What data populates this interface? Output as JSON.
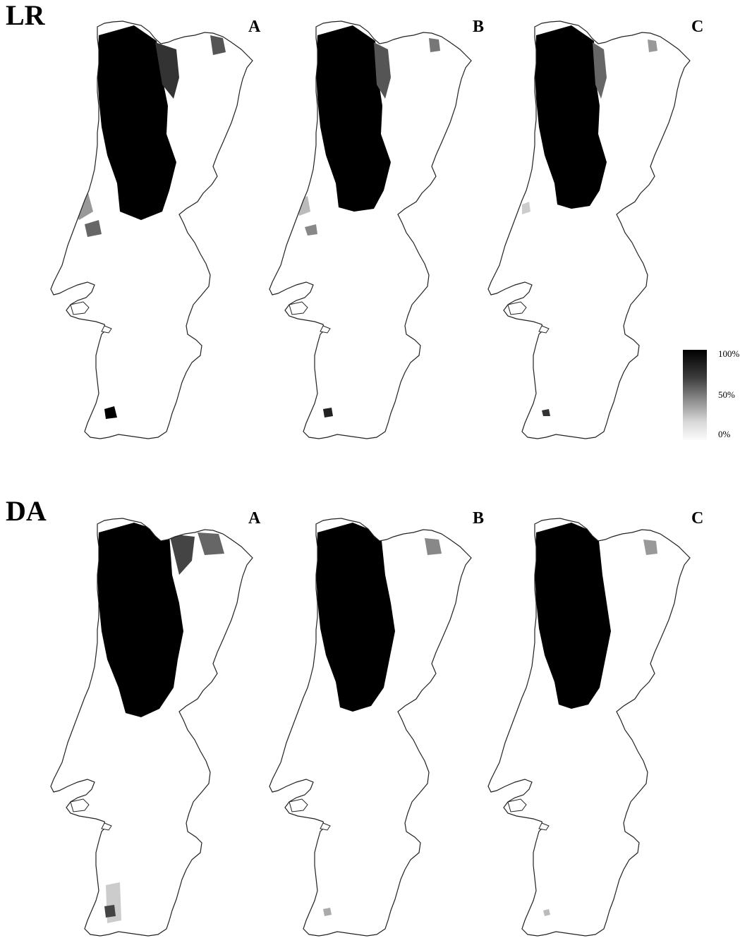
{
  "sections": [
    {
      "id": "lr",
      "label": "LR",
      "panels": [
        "A",
        "B",
        "C"
      ]
    },
    {
      "id": "da",
      "label": "DA",
      "panels": [
        "A",
        "B",
        "C"
      ]
    }
  ],
  "legend": {
    "ticks": [
      "100%",
      "50%",
      "0%"
    ],
    "colors": [
      "#000000",
      "#808080",
      "#ffffff"
    ]
  },
  "colors": {
    "outline": "#222222",
    "high": "#000000",
    "low": "#ffffff"
  }
}
